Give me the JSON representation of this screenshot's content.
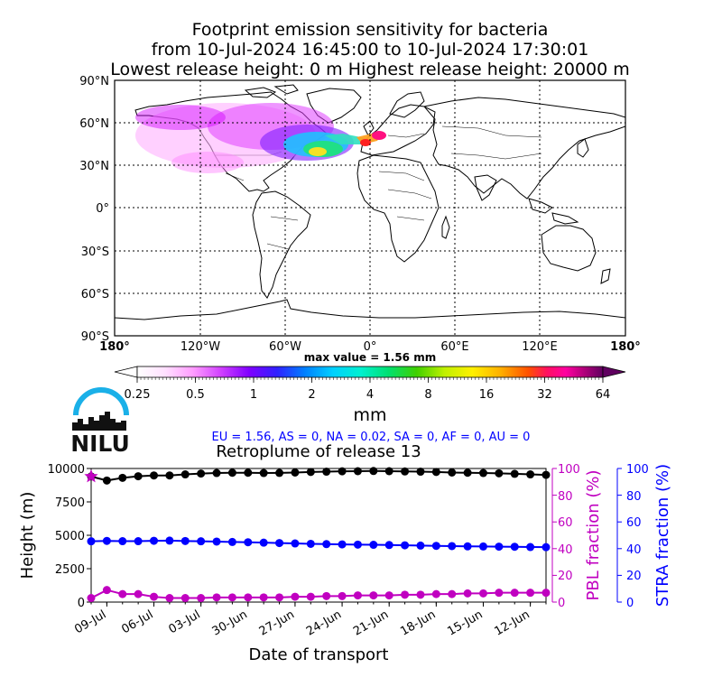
{
  "title": {
    "line1": "Footprint emission sensitivity for bacteria",
    "line2": "from 10-Jul-2024 16:45:00 to 10-Jul-2024 17:30:01",
    "line3": "Lowest release height: 0 m       Highest release height: 20000 m"
  },
  "map": {
    "lat_labels": [
      "90°N",
      "60°N",
      "30°N",
      "0°",
      "30°S",
      "60°S",
      "90°S"
    ],
    "lon_labels": [
      "180°",
      "120°W",
      "60°W",
      "0°",
      "60°E",
      "120°E",
      "180°"
    ],
    "max_value": "max value = 1.56 mm"
  },
  "colorbar": {
    "ticks": [
      "0.25",
      "0.5",
      "1",
      "2",
      "4",
      "8",
      "16",
      "32",
      "64"
    ],
    "unit": "mm"
  },
  "logo": {
    "text": "NILU"
  },
  "fractions": "EU = 1.56,  AS = 0,  NA = 0.02,  SA = 0,  AF = 0,  AU = 0",
  "chart_data": {
    "type": "line",
    "title": "Retroplume of release 13",
    "xlabel": "Date of transport",
    "ylabel": "Height (m)",
    "ylabel_right1": "PBL fraction (%)",
    "ylabel_right2": "STRA fraction (%)",
    "ylim": [
      0,
      10000
    ],
    "ylim_right": [
      0,
      100
    ],
    "yticks": [
      "0",
      "2500",
      "5000",
      "7500",
      "10000"
    ],
    "yticks_right": [
      "0",
      "20",
      "40",
      "60",
      "80",
      "100"
    ],
    "xticks": [
      "09-Jul",
      "06-Jul",
      "03-Jul",
      "30-Jun",
      "27-Jun",
      "24-Jun",
      "21-Jun",
      "18-Jun",
      "15-Jun",
      "12-Jun"
    ],
    "x_days_back": [
      0,
      1,
      2,
      3,
      4,
      5,
      6,
      7,
      8,
      9,
      10,
      11,
      12,
      13,
      14,
      15,
      16,
      17,
      18,
      19,
      20,
      21,
      22,
      23,
      24,
      25,
      26,
      27,
      28,
      29
    ],
    "series": [
      {
        "color": "#000000",
        "values": [
          9400,
          9100,
          9300,
          9420,
          9480,
          9480,
          9560,
          9620,
          9660,
          9680,
          9680,
          9660,
          9670,
          9700,
          9740,
          9760,
          9790,
          9800,
          9810,
          9800,
          9780,
          9760,
          9740,
          9700,
          9680,
          9660,
          9640,
          9600,
          9560,
          9520
        ]
      },
      {
        "color": "#0000ff",
        "values": [
          4550,
          4580,
          4560,
          4560,
          4590,
          4600,
          4570,
          4550,
          4530,
          4500,
          4480,
          4450,
          4420,
          4390,
          4360,
          4340,
          4320,
          4300,
          4290,
          4270,
          4250,
          4230,
          4210,
          4190,
          4170,
          4160,
          4150,
          4140,
          4120,
          4110
        ]
      },
      {
        "color": "#c000c0",
        "axis": "PBL fraction (%)",
        "values": [
          3,
          9,
          6,
          6,
          4,
          3,
          3,
          3,
          3.5,
          3.5,
          3.5,
          3.5,
          3.5,
          4,
          4,
          4.5,
          4.5,
          5,
          5,
          5,
          5.5,
          5.5,
          6,
          6,
          6.5,
          6.5,
          7,
          7,
          7,
          7
        ]
      }
    ],
    "start_marker": {
      "value": 9400,
      "color": "#c000c0",
      "shape": "star"
    }
  },
  "colors": {
    "pbl": "#c000c0",
    "stra": "#0000ff",
    "height": "#000000",
    "logo_arc": "#1ab0e8"
  }
}
